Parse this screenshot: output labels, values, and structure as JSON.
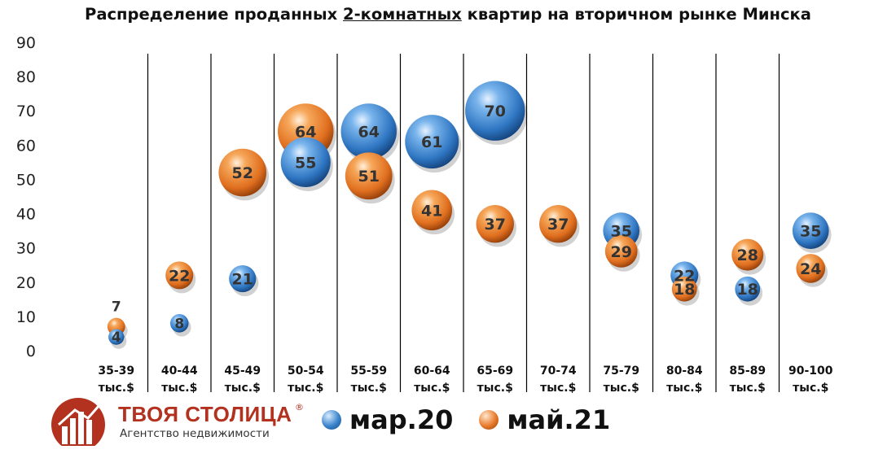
{
  "title": {
    "prefix": "Распределение проданных ",
    "underlined": "2-комнатных",
    "suffix": " квартир на вторичном рынке Минска"
  },
  "colors": {
    "mar20": "#3a84cc",
    "may21": "#e8792a"
  },
  "chart_data": {
    "type": "bubble",
    "ylim": [
      0,
      90
    ],
    "yticks": [
      0,
      10,
      20,
      30,
      40,
      50,
      60,
      70,
      80,
      90
    ],
    "grid": false,
    "legend_position": "bottom",
    "categories": [
      [
        "35-39",
        "тыс.$"
      ],
      [
        "40-44",
        "тыс.$"
      ],
      [
        "45-49",
        "тыс.$"
      ],
      [
        "50-54",
        "тыс.$"
      ],
      [
        "55-59",
        "тыс.$"
      ],
      [
        "60-64",
        "тыс.$"
      ],
      [
        "65-69",
        "тыс.$"
      ],
      [
        "70-74",
        "тыс.$"
      ],
      [
        "75-79",
        "тыс.$"
      ],
      [
        "80-84",
        "тыс.$"
      ],
      [
        "85-89",
        "тыс.$"
      ],
      [
        "90-100",
        "тыс.$"
      ]
    ],
    "series": [
      {
        "name": "мар.20",
        "values": [
          4,
          8,
          21,
          55,
          64,
          61,
          70,
          null,
          35,
          22,
          18,
          35
        ]
      },
      {
        "name": "май.21",
        "values": [
          7,
          22,
          52,
          64,
          51,
          41,
          37,
          37,
          29,
          18,
          28,
          24
        ]
      }
    ]
  },
  "logo": {
    "brand": "ТВОЯ СТОЛИЦА",
    "registered": "®",
    "tagline": "Агентство недвижимости"
  }
}
